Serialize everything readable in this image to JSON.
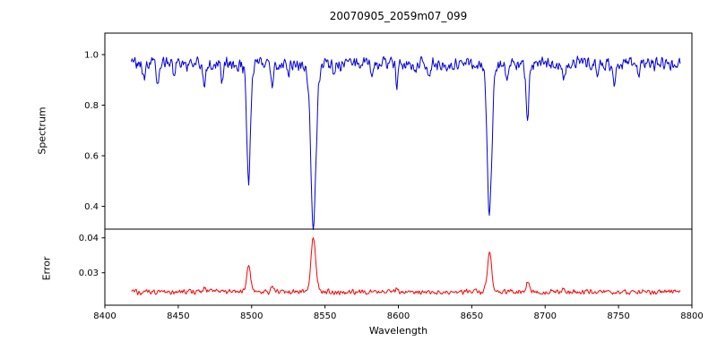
{
  "figure": {
    "title": "20070905_2059m07_099",
    "xlabel": "Wavelength",
    "top_ylabel": "Spectrum",
    "bottom_ylabel": "Error"
  },
  "chart_data": {
    "type": "line",
    "title": "20070905_2059m07_099",
    "xlabel": "Wavelength",
    "xlim": [
      8400,
      8800
    ],
    "x_ticks": [
      8400,
      8450,
      8500,
      8550,
      8600,
      8650,
      8700,
      8750,
      8800
    ],
    "grid": false,
    "legend": "none",
    "sampling": {
      "x_start": 8418,
      "x_end": 8792,
      "step": 0.5
    },
    "panels": [
      {
        "name": "spectrum",
        "ylabel": "Spectrum",
        "ylim": [
          0.31,
          1.085
        ],
        "y_ticks": [
          0.4,
          0.6,
          0.8,
          1.0
        ],
        "y_tick_labels": [
          "0.4",
          "0.6",
          "0.8",
          "1.0"
        ],
        "color": "#0000dd",
        "baseline": 0.965,
        "noise_amplitude": 0.032,
        "absorption_lines": [
          {
            "center": 8498.0,
            "depth": 0.455,
            "width": 1.3
          },
          {
            "center": 8542.1,
            "depth": 0.645,
            "width": 1.8
          },
          {
            "center": 8662.1,
            "depth": 0.6,
            "width": 1.6
          },
          {
            "center": 8688.0,
            "depth": 0.22,
            "width": 1.0
          },
          {
            "center": 8427.0,
            "depth": 0.05,
            "width": 0.9
          },
          {
            "center": 8436.0,
            "depth": 0.09,
            "width": 0.9
          },
          {
            "center": 8447.0,
            "depth": 0.05,
            "width": 0.8
          },
          {
            "center": 8468.0,
            "depth": 0.1,
            "width": 0.9
          },
          {
            "center": 8480.0,
            "depth": 0.06,
            "width": 0.8
          },
          {
            "center": 8514.0,
            "depth": 0.09,
            "width": 0.9
          },
          {
            "center": 8525.0,
            "depth": 0.05,
            "width": 0.8
          },
          {
            "center": 8556.0,
            "depth": 0.05,
            "width": 0.8
          },
          {
            "center": 8582.0,
            "depth": 0.06,
            "width": 0.9
          },
          {
            "center": 8599.0,
            "depth": 0.08,
            "width": 0.9
          },
          {
            "center": 8611.0,
            "depth": 0.05,
            "width": 0.8
          },
          {
            "center": 8621.0,
            "depth": 0.07,
            "width": 0.9
          },
          {
            "center": 8637.0,
            "depth": 0.05,
            "width": 0.8
          },
          {
            "center": 8674.0,
            "depth": 0.06,
            "width": 0.8
          },
          {
            "center": 8713.0,
            "depth": 0.06,
            "width": 0.9
          },
          {
            "center": 8736.0,
            "depth": 0.05,
            "width": 0.8
          },
          {
            "center": 8747.0,
            "depth": 0.07,
            "width": 0.9
          },
          {
            "center": 8764.0,
            "depth": 0.05,
            "width": 0.8
          }
        ]
      },
      {
        "name": "error",
        "ylabel": "Error",
        "ylim": [
          0.0207,
          0.0425
        ],
        "y_ticks": [
          0.03,
          0.04
        ],
        "y_tick_labels": [
          "0.03",
          "0.04"
        ],
        "color": "#ff0000",
        "baseline": 0.0245,
        "noise_amplitude": 0.0009,
        "emission_peaks": [
          {
            "center": 8498.0,
            "height": 0.0082,
            "width": 1.2
          },
          {
            "center": 8542.1,
            "height": 0.0158,
            "width": 1.6
          },
          {
            "center": 8662.1,
            "height": 0.0115,
            "width": 1.5
          },
          {
            "center": 8688.0,
            "height": 0.0028,
            "width": 1.0
          },
          {
            "center": 8468.0,
            "height": 0.0012,
            "width": 1.0
          },
          {
            "center": 8514.0,
            "height": 0.0012,
            "width": 1.0
          },
          {
            "center": 8599.0,
            "height": 0.0008,
            "width": 1.0
          },
          {
            "center": 8713.0,
            "height": 0.0008,
            "width": 1.0
          }
        ]
      }
    ]
  }
}
